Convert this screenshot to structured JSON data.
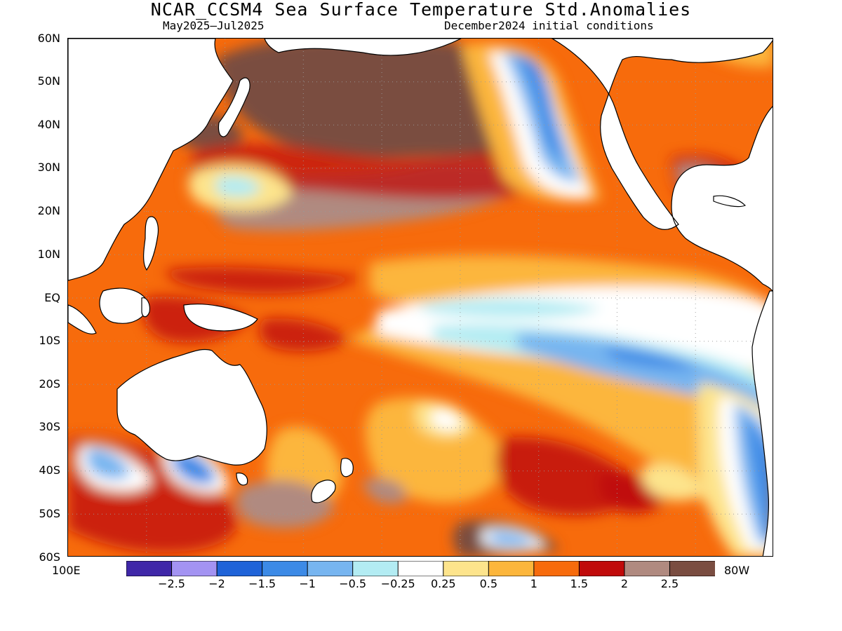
{
  "title": "NCAR_CCSM4 Sea Surface Temperature Std.Anomalies",
  "subtitle_left": "May2025–Jul2025",
  "subtitle_right": "December2024 initial conditions",
  "lat_labels": [
    "60N",
    "50N",
    "40N",
    "30N",
    "20N",
    "10N",
    "EQ",
    "10S",
    "20S",
    "30S",
    "40S",
    "50S",
    "60S"
  ],
  "lon_labels": {
    "west": "100E",
    "east": "80W"
  },
  "colorbar": {
    "colors": [
      "#3f27a8",
      "#a393f2",
      "#1f63d8",
      "#3c8ae6",
      "#77b5f0",
      "#b3ecf3",
      "#ffffff",
      "#fde48c",
      "#fcb63c",
      "#f76b0c",
      "#c00a0a",
      "#b08a80",
      "#7a4d41"
    ],
    "labels": [
      "−2.5",
      "−2",
      "−1.5",
      "−1",
      "−0.5",
      "−0.25",
      "0.25",
      "0.5",
      "1",
      "1.5",
      "2",
      "2.5"
    ]
  },
  "colors": {
    "land": "#ffffff",
    "coast": "#000000",
    "grid": "#9a9a9a"
  }
}
